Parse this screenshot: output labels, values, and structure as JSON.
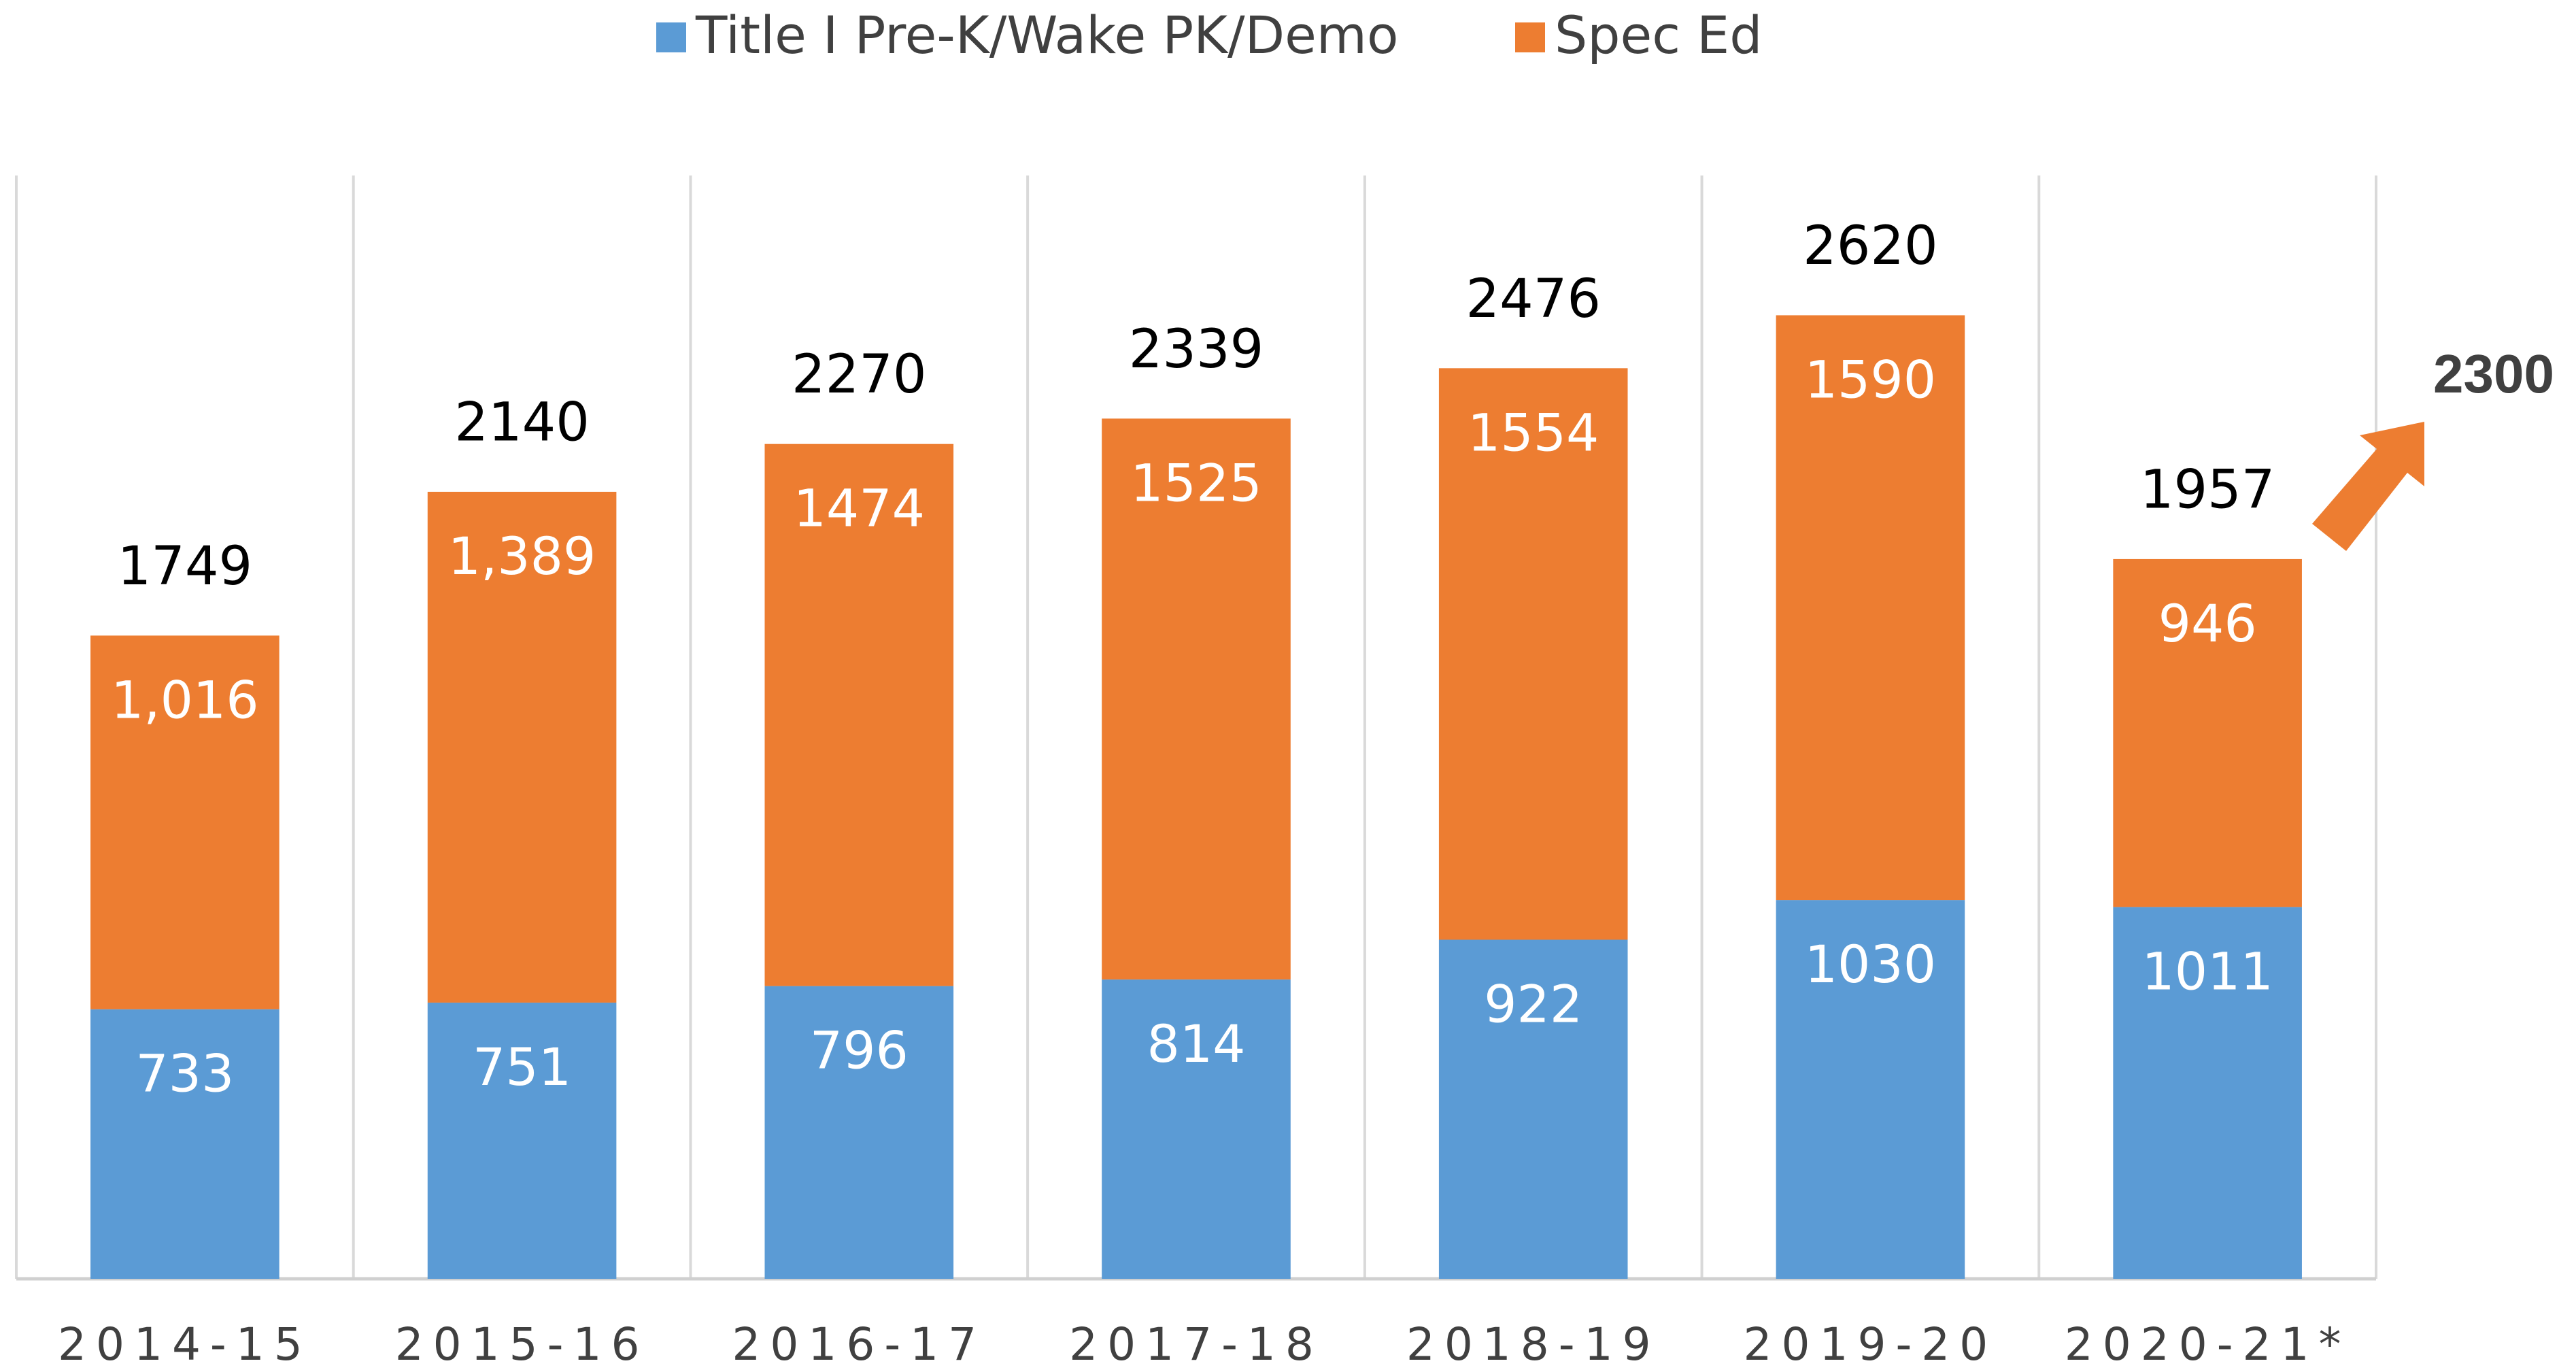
{
  "chart_data": {
    "type": "stacked_bar",
    "categories": [
      "2014-15",
      "2015-16",
      "2016-17",
      "2017-18",
      "2018-19",
      "2019-20",
      "2020-21*"
    ],
    "series": [
      {
        "name": "Title I Pre-K/Wake PK/Demo",
        "color": "#5b9bd5",
        "values": [
          733,
          751,
          796,
          814,
          922,
          1030,
          1011
        ]
      },
      {
        "name": "Spec Ed",
        "color": "#ed7d31",
        "values": [
          1016,
          1389,
          1474,
          1525,
          1554,
          1590,
          946
        ],
        "value_labels": [
          "1,016",
          "1,389",
          "1474",
          "1525",
          "1554",
          "1590",
          "946"
        ]
      }
    ],
    "totals": [
      1749,
      2140,
      2270,
      2339,
      2476,
      2620,
      1957
    ],
    "annotation": 2300,
    "ylim": [
      0,
      3000
    ],
    "legend": "top"
  }
}
